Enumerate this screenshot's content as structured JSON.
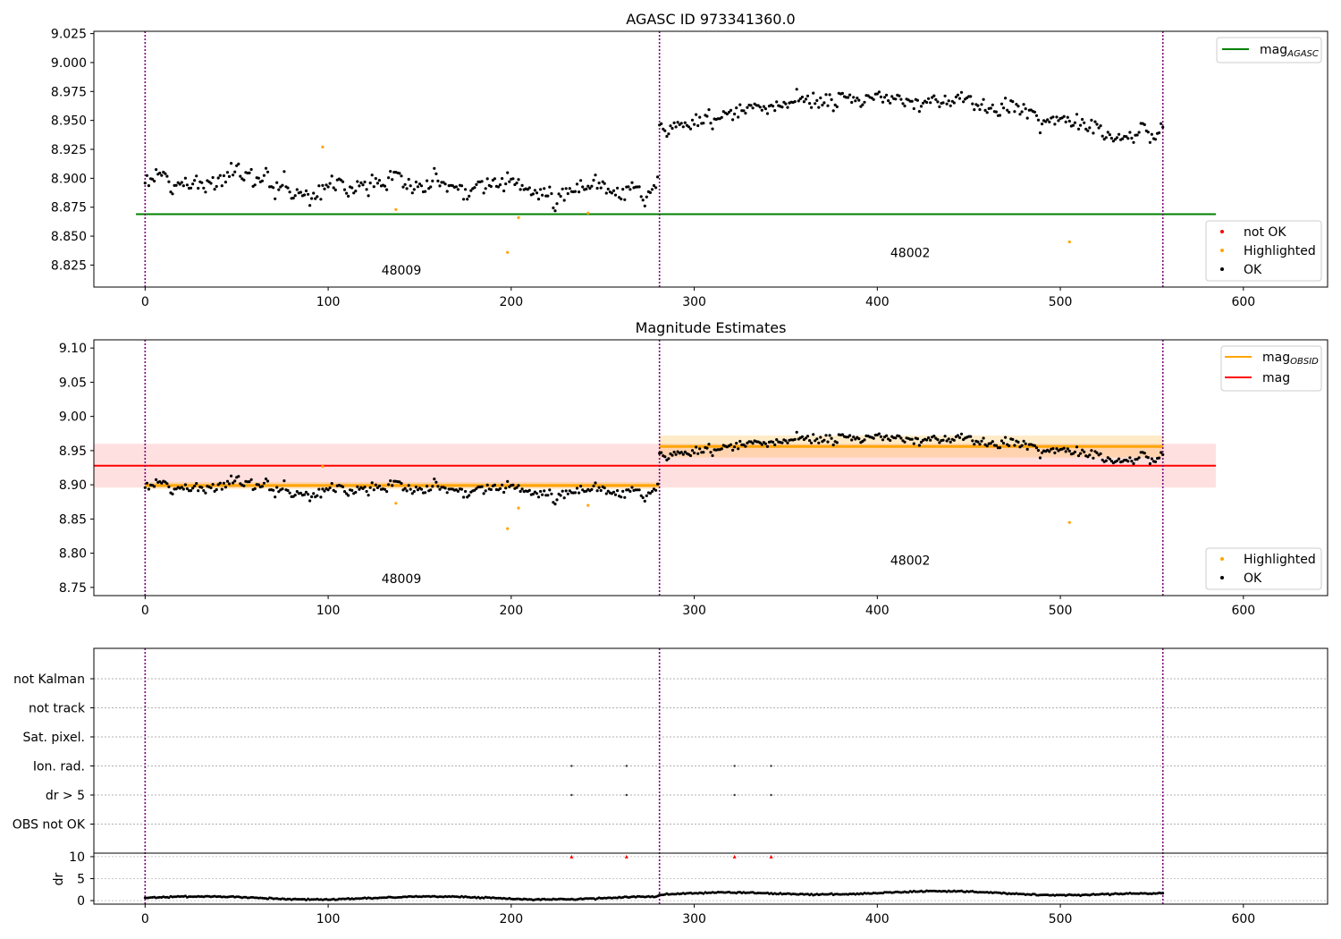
{
  "chart_data": [
    {
      "type": "scatter",
      "title": "AGASC ID 973341360.0",
      "xlim": [
        -28,
        646
      ],
      "ylim": [
        8.806,
        9.027
      ],
      "xticks": [
        0,
        100,
        200,
        300,
        400,
        500,
        600
      ],
      "yticks": [
        8.825,
        8.85,
        8.875,
        8.9,
        8.925,
        8.95,
        8.975,
        9.0,
        9.025
      ],
      "ytick_labels": [
        "8.825",
        "8.850",
        "8.875",
        "8.900",
        "8.925",
        "8.950",
        "8.975",
        "9.000",
        "9.025"
      ],
      "obsid_boundaries": [
        0,
        281,
        556
      ],
      "obsid_labels": [
        {
          "text": "48009",
          "x": 140,
          "y": 8.817
        },
        {
          "text": "48002",
          "x": 418,
          "y": 8.832
        }
      ],
      "lines": [
        {
          "name": "mag_AGASC",
          "legend": "mag",
          "legend_sub": "AGASC",
          "color": "#008000",
          "y": 8.869,
          "x_range": [
            -28,
            585
          ]
        }
      ],
      "segments": [
        {
          "x_start": 0,
          "x_end": 280,
          "level": 8.9,
          "spread": 0.01,
          "trend": -0.008,
          "wave": 0.004
        },
        {
          "x_start": 281,
          "x_end": 556,
          "level": 8.956,
          "spread": 0.008,
          "trend": 0.0,
          "wave": 0.028
        }
      ],
      "highlighted": [
        [
          97,
          8.927
        ],
        [
          137,
          8.873
        ],
        [
          198,
          8.836
        ],
        [
          204,
          8.866
        ],
        [
          242,
          8.87
        ],
        [
          505,
          8.845
        ]
      ],
      "not_ok": [],
      "legend2": [
        {
          "label": "not OK",
          "color": "#ff0000"
        },
        {
          "label": "Highlighted",
          "color": "#ffa500"
        },
        {
          "label": "OK",
          "color": "#000000"
        }
      ]
    },
    {
      "type": "scatter",
      "title": "Magnitude Estimates",
      "xlim": [
        -28,
        646
      ],
      "ylim": [
        8.738,
        9.112
      ],
      "xticks": [
        0,
        100,
        200,
        300,
        400,
        500,
        600
      ],
      "yticks": [
        8.75,
        8.8,
        8.85,
        8.9,
        8.95,
        9.0,
        9.05,
        9.1
      ],
      "ytick_labels": [
        "8.75",
        "8.80",
        "8.85",
        "8.90",
        "8.95",
        "9.00",
        "9.05",
        "9.10"
      ],
      "obsid_boundaries": [
        0,
        281,
        556
      ],
      "obsid_labels": [
        {
          "text": "48009",
          "x": 140,
          "y": 8.756
        },
        {
          "text": "48002",
          "x": 418,
          "y": 8.783
        }
      ],
      "mag": {
        "value": 8.928,
        "band": [
          8.896,
          8.96
        ],
        "x_range": [
          -28,
          585
        ],
        "color": "#ff0000",
        "band_color": "#ffe0e0"
      },
      "mag_obsid": [
        {
          "x_range": [
            0,
            281
          ],
          "value": 8.899,
          "band": [
            8.894,
            8.904
          ]
        },
        {
          "x_range": [
            281,
            556
          ],
          "value": 8.956,
          "band": [
            8.94,
            8.972
          ]
        }
      ],
      "mag_obsid_color": "#ffa500",
      "legend_lines": [
        {
          "label": "mag",
          "sub": "OBSID",
          "color": "#ffa500"
        },
        {
          "label": "mag",
          "sub": "",
          "color": "#ff0000"
        }
      ],
      "legend_points": [
        {
          "label": "Highlighted",
          "color": "#ffa500"
        },
        {
          "label": "OK",
          "color": "#000000"
        }
      ]
    },
    {
      "type": "scatter",
      "title": "",
      "xlim": [
        -28,
        646
      ],
      "xticks": [
        0,
        100,
        200,
        300,
        400,
        500,
        600
      ],
      "obsid_boundaries": [
        0,
        281,
        556
      ],
      "flag_rows": [
        "not Kalman",
        "not track",
        "Sat. pixel.",
        "Ion. rad.",
        "dr > 5",
        "OBS not OK"
      ],
      "flag_points": [
        {
          "row": "Ion. rad.",
          "x": [
            233,
            263,
            322,
            342
          ]
        },
        {
          "row": "dr > 5",
          "x": [
            233,
            263,
            322,
            342
          ]
        }
      ],
      "dr": {
        "ylabel": "dr",
        "ylim": [
          -0.8,
          10.8
        ],
        "yticks": [
          0,
          5,
          10
        ],
        "ytick_labels": [
          "0",
          "5",
          "10"
        ],
        "clipped_markers_x": [
          233,
          263,
          322,
          342
        ],
        "clipped_color": "#ff0000",
        "segments": [
          {
            "x_start": 0,
            "x_end": 280,
            "level": 0.6
          },
          {
            "x_start": 281,
            "x_end": 556,
            "level": 1.3
          }
        ]
      }
    }
  ]
}
